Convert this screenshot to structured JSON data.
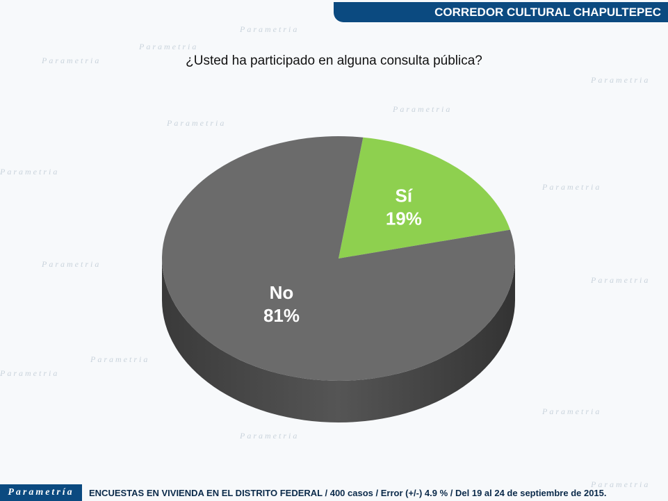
{
  "header": {
    "title": "CORREDOR CULTURAL CHAPULTEPEC"
  },
  "footer": {
    "logo": "Parametría",
    "text": "ENCUESTAS EN VIVIENDA EN EL DISTRITO FEDERAL / 400 casos / Error (+/-) 4.9 % / Del 19 al 24 de septiembre de 2015."
  },
  "chart_data": {
    "type": "pie",
    "title": "¿Usted ha participado en alguna consulta pública?",
    "slices": [
      {
        "label": "Sí",
        "value": 19,
        "display": "19%",
        "color": "#8ed04f"
      },
      {
        "label": "No",
        "value": 81,
        "display": "81%",
        "color": "#6b6b6b"
      }
    ]
  }
}
